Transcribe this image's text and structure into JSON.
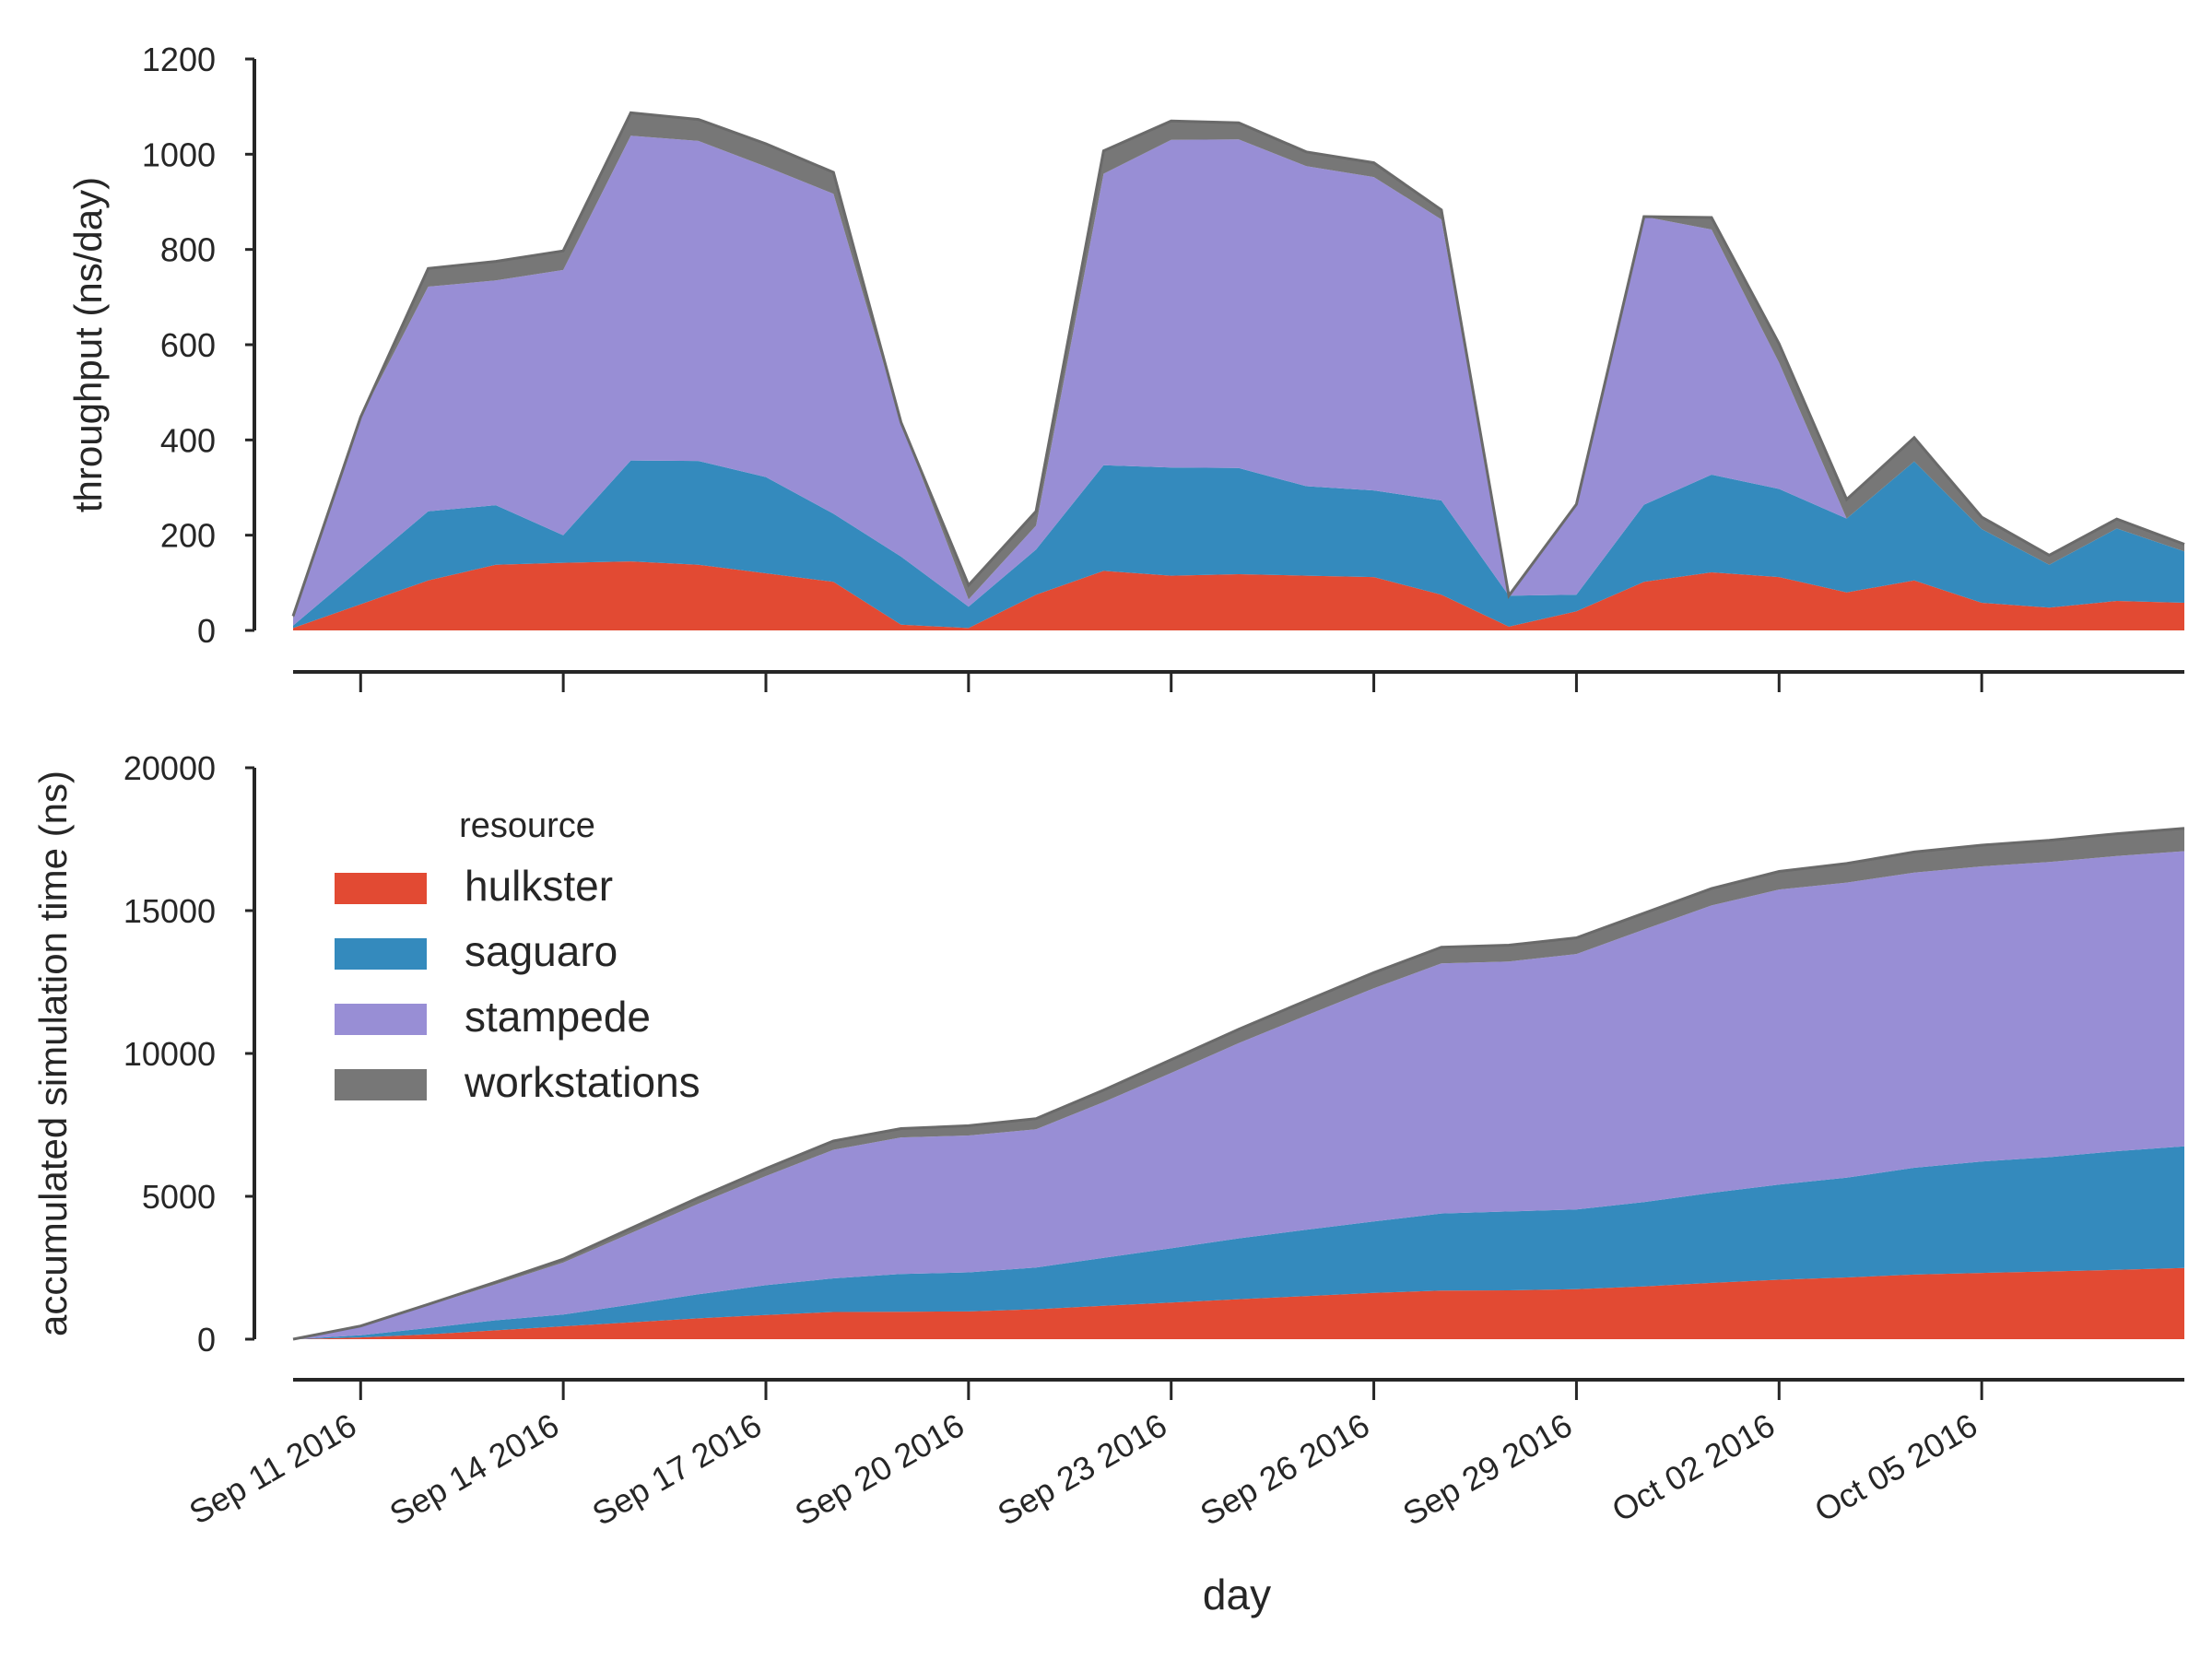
{
  "xlabel": "day",
  "x_ticks": [
    "Sep 11 2016",
    "Sep 14 2016",
    "Sep 17 2016",
    "Sep 20 2016",
    "Sep 23 2016",
    "Sep 26 2016",
    "Sep 29 2016",
    "Oct 02 2016",
    "Oct 05 2016"
  ],
  "legend": {
    "title": "resource"
  },
  "colors": {
    "hulkster": "#e24a33",
    "saguaro": "#348abd",
    "stampede": "#988ed5",
    "workstations": "#777777"
  },
  "chart_data": [
    {
      "type": "area",
      "stacked": true,
      "title": "",
      "xlabel": "",
      "ylabel": "throughput (ns/day)",
      "ylim": [
        0,
        1200
      ],
      "yticks": [
        "0",
        "200",
        "400",
        "600",
        "800",
        "1000",
        "1200"
      ],
      "x": [
        "2016-09-10",
        "2016-09-11",
        "2016-09-12",
        "2016-09-13",
        "2016-09-14",
        "2016-09-15",
        "2016-09-16",
        "2016-09-17",
        "2016-09-18",
        "2016-09-19",
        "2016-09-20",
        "2016-09-21",
        "2016-09-22",
        "2016-09-23",
        "2016-09-24",
        "2016-09-25",
        "2016-09-26",
        "2016-09-27",
        "2016-09-28",
        "2016-09-29",
        "2016-09-30",
        "2016-10-01",
        "2016-10-02",
        "2016-10-03",
        "2016-10-04",
        "2016-10-05",
        "2016-10-06",
        "2016-10-07",
        "2016-10-08"
      ],
      "series": [
        {
          "name": "hulkster",
          "values": [
            5,
            55,
            105,
            138,
            142,
            145,
            138,
            120,
            102,
            12,
            5,
            75,
            125,
            115,
            118,
            115,
            112,
            75,
            8,
            40,
            102,
            122,
            112,
            80,
            105,
            58,
            48,
            62,
            58
          ]
        },
        {
          "name": "saguaro",
          "values": [
            5,
            75,
            145,
            125,
            58,
            212,
            218,
            202,
            143,
            143,
            45,
            95,
            222,
            227,
            223,
            188,
            182,
            198,
            65,
            35,
            162,
            205,
            185,
            155,
            250,
            155,
            90,
            152,
            108
          ]
        },
        {
          "name": "stampede",
          "values": [
            15,
            318,
            472,
            472,
            557,
            682,
            672,
            652,
            672,
            282,
            15,
            50,
            612,
            688,
            690,
            672,
            658,
            590,
            0,
            190,
            605,
            515,
            265,
            0,
            0,
            0,
            0,
            0,
            0
          ]
        },
        {
          "name": "workstations",
          "values": [
            5,
            0,
            38,
            40,
            40,
            48,
            45,
            48,
            45,
            0,
            30,
            30,
            48,
            40,
            35,
            30,
            30,
            20,
            0,
            0,
            0,
            25,
            40,
            40,
            50,
            25,
            20,
            20,
            15
          ]
        }
      ]
    },
    {
      "type": "area",
      "stacked": true,
      "title": "",
      "xlabel": "day",
      "ylabel": "accumulated simulation time (ns)",
      "ylim": [
        0,
        20000
      ],
      "yticks": [
        "0",
        "5000",
        "10000",
        "15000",
        "20000"
      ],
      "legend_position": "upper-left",
      "x": [
        "2016-09-10",
        "2016-09-11",
        "2016-09-12",
        "2016-09-13",
        "2016-09-14",
        "2016-09-15",
        "2016-09-16",
        "2016-09-17",
        "2016-09-18",
        "2016-09-19",
        "2016-09-20",
        "2016-09-21",
        "2016-09-22",
        "2016-09-23",
        "2016-09-24",
        "2016-09-25",
        "2016-09-26",
        "2016-09-27",
        "2016-09-28",
        "2016-09-29",
        "2016-09-30",
        "2016-10-01",
        "2016-10-02",
        "2016-10-03",
        "2016-10-04",
        "2016-10-05",
        "2016-10-06",
        "2016-10-07",
        "2016-10-08"
      ],
      "series": [
        {
          "name": "hulkster",
          "values": [
            0,
            60,
            170,
            310,
            450,
            590,
            730,
            850,
            950,
            960,
            970,
            1050,
            1170,
            1280,
            1400,
            1510,
            1620,
            1700,
            1710,
            1750,
            1850,
            1970,
            2080,
            2160,
            2260,
            2320,
            2370,
            2430,
            2490
          ]
        },
        {
          "name": "saguaro",
          "values": [
            0,
            80,
            220,
            350,
            410,
            620,
            840,
            1040,
            1180,
            1320,
            1370,
            1460,
            1680,
            1900,
            2130,
            2320,
            2500,
            2700,
            2760,
            2790,
            2950,
            3150,
            3330,
            3490,
            3740,
            3900,
            4000,
            4150,
            4260
          ]
        },
        {
          "name": "stampede",
          "values": [
            0,
            320,
            790,
            1260,
            1820,
            2500,
            3170,
            3820,
            4500,
            4780,
            4790,
            4840,
            5450,
            6140,
            6830,
            7500,
            8160,
            8750,
            8750,
            8940,
            9540,
            10060,
            10330,
            10330,
            10330,
            10330,
            10330,
            10330,
            10330
          ]
        },
        {
          "name": "workstations",
          "values": [
            0,
            0,
            40,
            80,
            120,
            170,
            210,
            260,
            310,
            310,
            340,
            370,
            420,
            460,
            490,
            520,
            550,
            570,
            570,
            570,
            570,
            590,
            630,
            670,
            720,
            740,
            760,
            780,
            800
          ]
        }
      ]
    }
  ]
}
